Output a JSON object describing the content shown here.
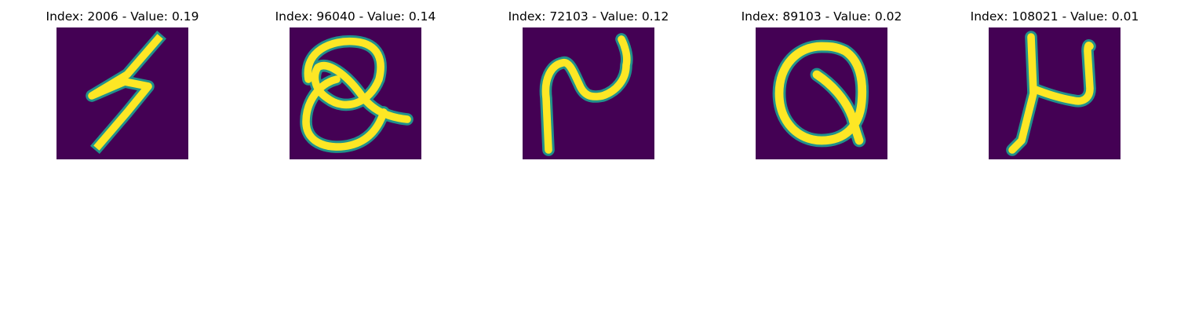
{
  "figure": {
    "panels": [
      {
        "index": "2006",
        "value": "0.19",
        "title": "Index: 2006 - Value: 0.19"
      },
      {
        "index": "96040",
        "value": "0.14",
        "title": "Index: 96040 - Value: 0.14"
      },
      {
        "index": "72103",
        "value": "0.12",
        "title": "Index: 72103 - Value: 0.12"
      },
      {
        "index": "89103",
        "value": "0.02",
        "title": "Index: 89103 - Value: 0.02"
      },
      {
        "index": "108021",
        "value": "0.01",
        "title": "Index: 108021 - Value: 0.01"
      }
    ]
  },
  "colors": {
    "background": "#440154",
    "stroke_core": "#fde725",
    "stroke_edge": "#21918c"
  }
}
